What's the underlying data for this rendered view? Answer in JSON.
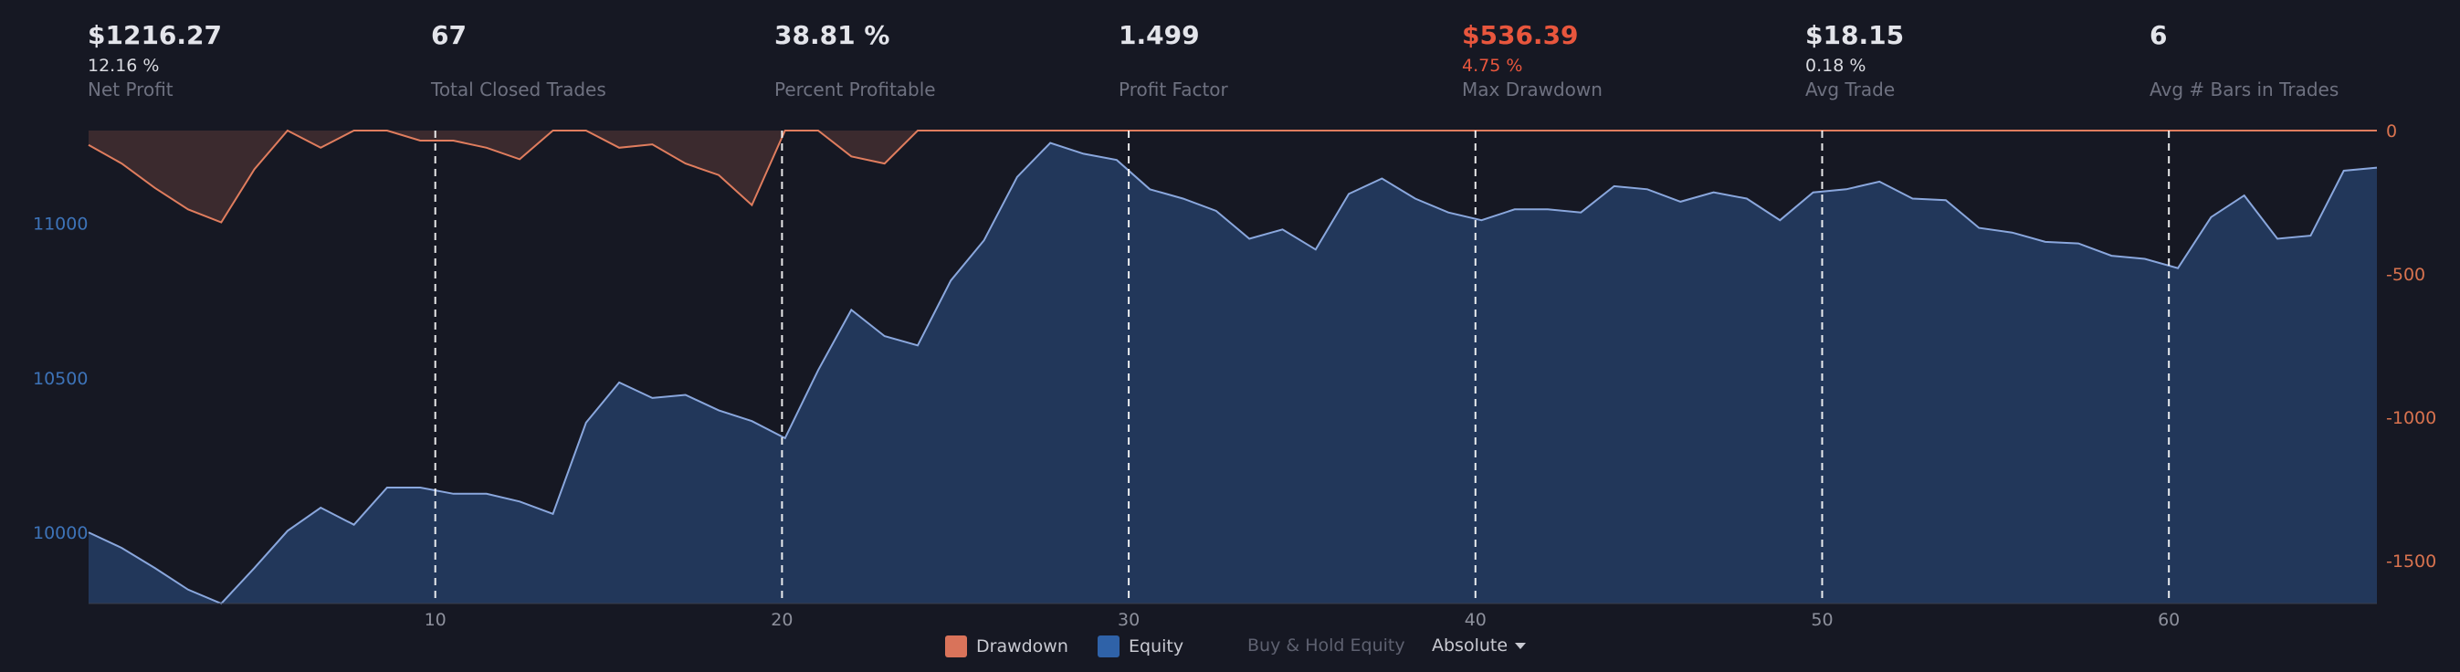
{
  "stats": [
    {
      "value": "$1216.27",
      "sub": "12.16 %",
      "label": "Net Profit",
      "highlight": false
    },
    {
      "value": "67",
      "sub": "",
      "label": "Total Closed Trades",
      "highlight": false
    },
    {
      "value": "38.81 %",
      "sub": "",
      "label": "Percent Profitable",
      "highlight": false
    },
    {
      "value": "1.499",
      "sub": "",
      "label": "Profit Factor",
      "highlight": false
    },
    {
      "value": "$536.39",
      "sub": "4.75 %",
      "label": "Max Drawdown",
      "highlight": true
    },
    {
      "value": "$18.15",
      "sub": "0.18 %",
      "label": "Avg Trade",
      "highlight": false
    },
    {
      "value": "6",
      "sub": "",
      "label": "Avg # Bars in Trades",
      "highlight": false
    }
  ],
  "legend": {
    "drawdown_label": "Drawdown",
    "equity_label": "Equity",
    "buyhold_label": "Buy & Hold Equity",
    "mode_label": "Absolute"
  },
  "colors": {
    "background": "#161823",
    "equity_line": "#8aa7dd",
    "equity_fill": "#22375a",
    "drawdown_line": "#e07d5e",
    "drawdown_fill": "#3b2a2e",
    "drawdown_swatch": "#d9735a",
    "equity_swatch": "#2f62a8",
    "gridline": "#ffffff",
    "red_text": "#e8563d"
  },
  "chart_data": {
    "type": "area",
    "x_range": [
      0,
      66
    ],
    "x_ticks": [
      10,
      20,
      30,
      40,
      50,
      60
    ],
    "y_left_range": [
      9770,
      11300
    ],
    "y_left_ticks": [
      10000,
      10500,
      11000
    ],
    "y_right_range": [
      -1650,
      0
    ],
    "y_right_ticks": [
      0,
      -500,
      -1000,
      -1500
    ],
    "grid_lines_x": [
      10,
      20,
      30,
      40,
      50,
      60
    ],
    "legend_position": "bottom",
    "series": [
      {
        "name": "Equity",
        "axis": "left",
        "values": [
          10000,
          9950,
          9885,
          9815,
          9770,
          9885,
          10005,
          10080,
          10025,
          10145,
          10145,
          10125,
          10125,
          10100,
          10060,
          10355,
          10485,
          10435,
          10445,
          10395,
          10360,
          10305,
          10525,
          10720,
          10635,
          10605,
          10815,
          10945,
          11150,
          11260,
          11225,
          11205,
          11110,
          11080,
          11040,
          10950,
          10980,
          10915,
          11095,
          11145,
          11080,
          11035,
          11010,
          11045,
          11045,
          11035,
          11120,
          11110,
          11070,
          11100,
          11080,
          11010,
          11100,
          11110,
          11135,
          11080,
          11075,
          10985,
          10970,
          10940,
          10935,
          10895,
          10885,
          10855,
          11020,
          11090,
          10950,
          10960,
          11170,
          11180
        ]
      },
      {
        "name": "Drawdown",
        "axis": "right",
        "values": [
          -50,
          -115,
          -200,
          -275,
          -320,
          -135,
          0,
          -60,
          0,
          0,
          -35,
          -35,
          -60,
          -100,
          0,
          0,
          -60,
          -48,
          -115,
          -155,
          -260,
          0,
          0,
          -90,
          -115,
          0,
          0,
          0,
          0,
          0,
          0,
          0,
          0,
          0,
          0,
          0,
          0,
          0,
          0,
          0,
          0,
          0,
          0,
          0,
          0,
          0,
          0,
          0,
          0,
          0,
          0,
          0,
          0,
          0,
          0,
          0,
          0,
          0,
          0,
          0,
          0,
          0,
          0,
          0,
          0,
          0,
          0,
          0,
          0,
          0
        ]
      }
    ]
  }
}
